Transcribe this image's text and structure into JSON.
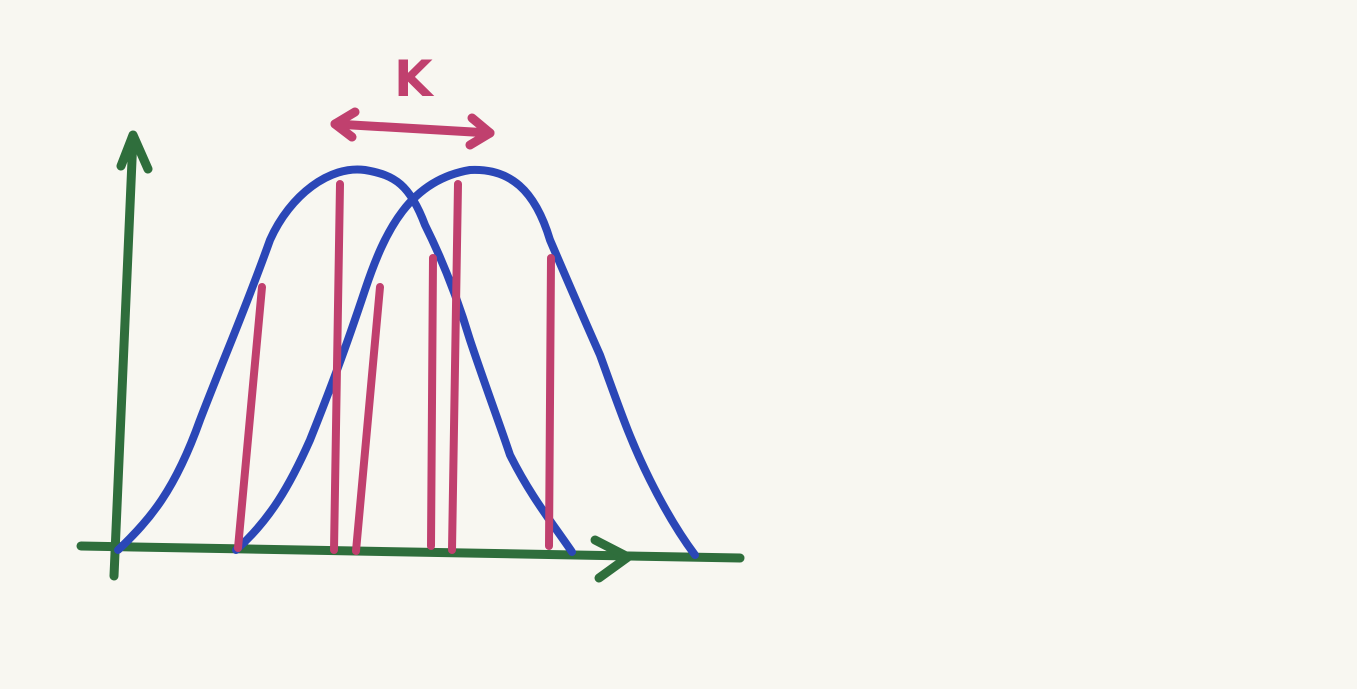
{
  "colors": {
    "background": "#f8f7f1",
    "axes": "#2f6e3c",
    "curves": "#2b47b7",
    "markers": "#c0406e"
  },
  "labels": {
    "shift": "K"
  }
}
